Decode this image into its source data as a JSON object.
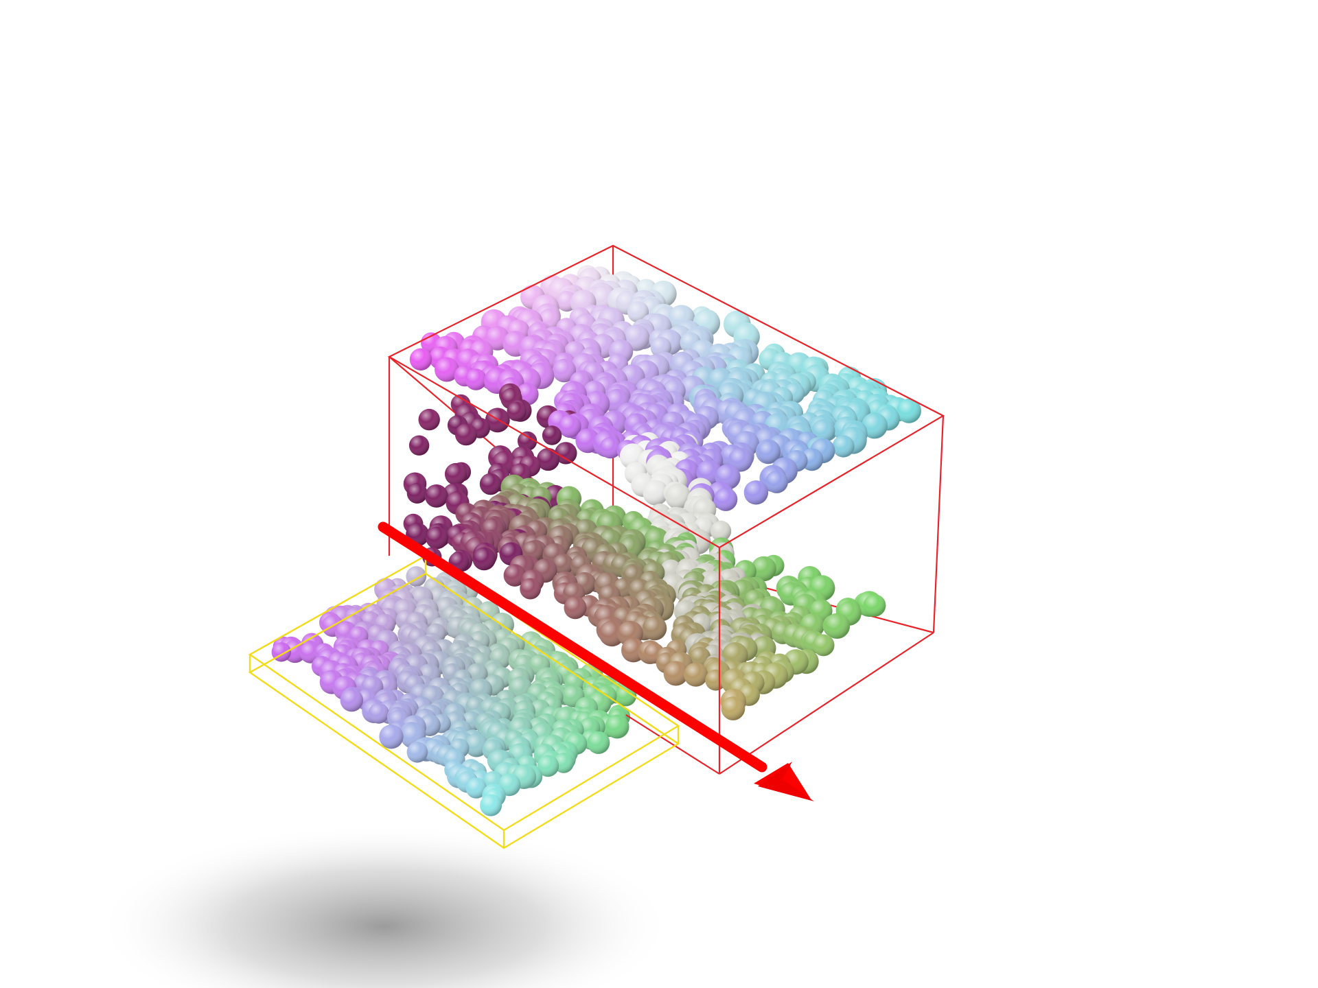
{
  "scene": {
    "description_free": true,
    "colors": {
      "background": "#ffffff",
      "red_box": "#e8242a",
      "yellow_box": "#f2dc1a",
      "arrow": "#ff0000",
      "shadow": "#8a8a8a"
    },
    "sphere_palette": {
      "top_left": "#e85cf2",
      "top_mid": "#a98cf0",
      "top_right": "#6ad8e0",
      "center": "#f2f2f2",
      "bottom_left": "#8a2a6a",
      "bottom_mid": "#9a8060",
      "bottom_right": "#7ad86a",
      "slab_left": "#c860f0",
      "slab_front": "#8ee8e8",
      "slab_right": "#72d872"
    },
    "icons": [
      "sphere-cluster",
      "wireframe-box",
      "wireframe-slab",
      "direction-arrow"
    ]
  }
}
